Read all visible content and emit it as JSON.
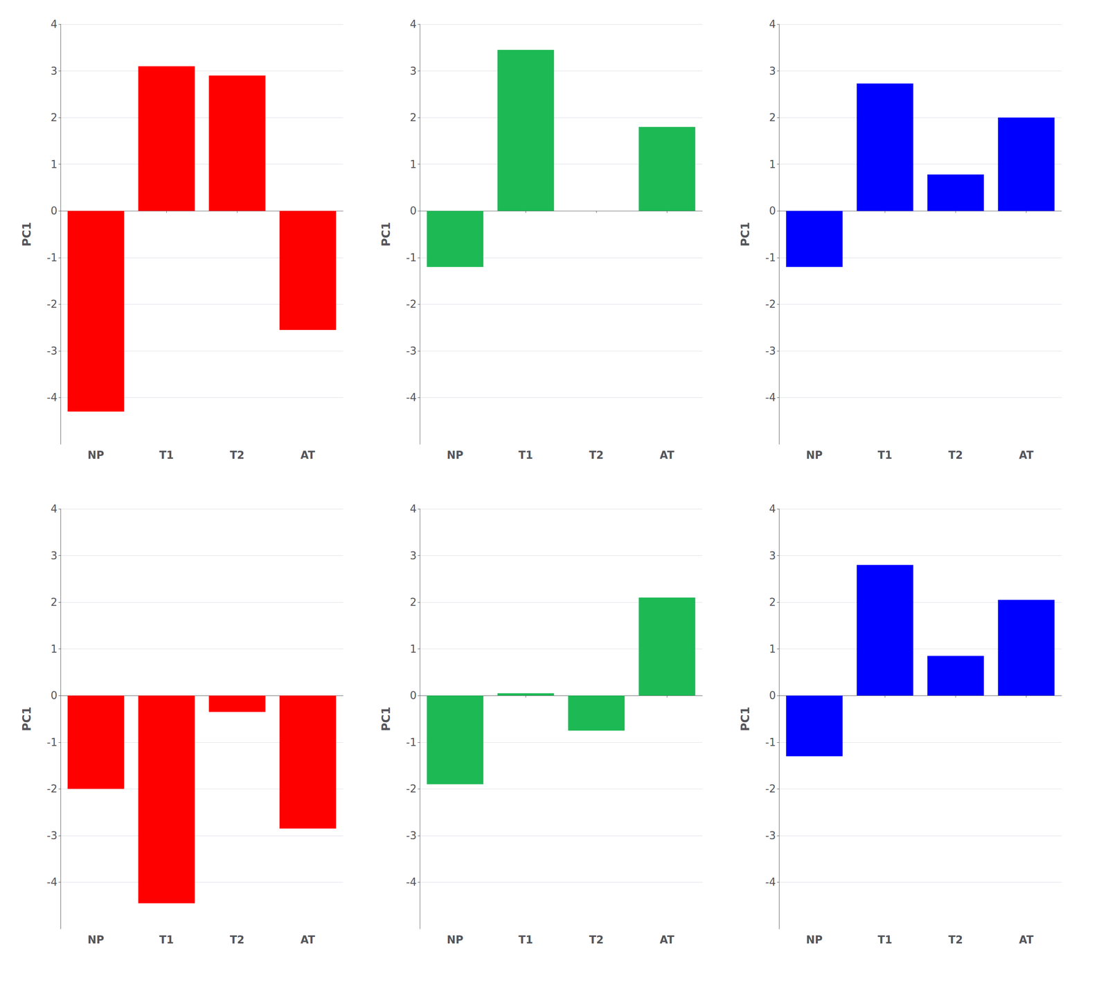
{
  "chart_data": [
    {
      "type": "bar",
      "categories": [
        "NP",
        "T1",
        "T2",
        "AT"
      ],
      "values": [
        -4.3,
        3.1,
        2.9,
        -2.55
      ],
      "color": "#FF0000",
      "ylabel": "PC1",
      "ylim": [
        -5,
        4
      ],
      "yticks": [
        -4,
        -3,
        -2,
        -1,
        0,
        1,
        2,
        3,
        4
      ],
      "grid": true
    },
    {
      "type": "bar",
      "categories": [
        "NP",
        "T1",
        "T2",
        "AT"
      ],
      "values": [
        -1.2,
        3.45,
        0.0,
        1.8
      ],
      "color": "#1DB954",
      "ylabel": "PC1",
      "ylim": [
        -5,
        4
      ],
      "yticks": [
        -4,
        -3,
        -2,
        -1,
        0,
        1,
        2,
        3,
        4
      ],
      "grid": true
    },
    {
      "type": "bar",
      "categories": [
        "NP",
        "T1",
        "T2",
        "AT"
      ],
      "values": [
        -1.2,
        2.73,
        0.78,
        2.0
      ],
      "color": "#0000FF",
      "ylabel": "PC1",
      "ylim": [
        -5,
        4
      ],
      "yticks": [
        -4,
        -3,
        -2,
        -1,
        0,
        1,
        2,
        3,
        4
      ],
      "grid": true
    },
    {
      "type": "bar",
      "categories": [
        "NP",
        "T1",
        "T2",
        "AT"
      ],
      "values": [
        -2.0,
        -4.45,
        -0.35,
        -2.85
      ],
      "color": "#FF0000",
      "ylabel": "PC1",
      "ylim": [
        -5,
        4
      ],
      "yticks": [
        -4,
        -3,
        -2,
        -1,
        0,
        1,
        2,
        3,
        4
      ],
      "grid": true
    },
    {
      "type": "bar",
      "categories": [
        "NP",
        "T1",
        "T2",
        "AT"
      ],
      "values": [
        -1.9,
        0.05,
        -0.75,
        2.1
      ],
      "color": "#1DB954",
      "ylabel": "PC1",
      "ylim": [
        -5,
        4
      ],
      "yticks": [
        -4,
        -3,
        -2,
        -1,
        0,
        1,
        2,
        3,
        4
      ],
      "grid": true
    },
    {
      "type": "bar",
      "categories": [
        "NP",
        "T1",
        "T2",
        "AT"
      ],
      "values": [
        -1.3,
        2.8,
        0.85,
        2.05
      ],
      "color": "#0000FF",
      "ylabel": "PC1",
      "ylim": [
        -5,
        4
      ],
      "yticks": [
        -4,
        -3,
        -2,
        -1,
        0,
        1,
        2,
        3,
        4
      ],
      "grid": true
    }
  ]
}
